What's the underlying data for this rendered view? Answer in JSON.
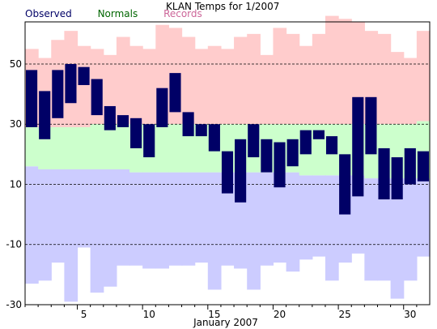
{
  "chart_data": {
    "type": "bar",
    "title": "KLAN Temps for 1/2007",
    "xlabel": "January 2007",
    "ylabel": "",
    "legend": [
      {
        "name": "Observed",
        "color": "#000066"
      },
      {
        "name": "Normals",
        "color": "#006600"
      },
      {
        "name": "Records",
        "color": "#cc6699"
      }
    ],
    "ylim": [
      -30,
      64
    ],
    "yticks": [
      -30,
      -10,
      10,
      30,
      50
    ],
    "xticks": [
      5,
      10,
      15,
      20,
      25,
      30
    ],
    "grid_y": [
      -10,
      10,
      30,
      50
    ],
    "colors": {
      "observed": "#000066",
      "normals": "#ccffcc",
      "records": "#ffcccc",
      "records_low": "#ccccff",
      "grid": "#000000"
    },
    "days": [
      1,
      2,
      3,
      4,
      5,
      6,
      7,
      8,
      9,
      10,
      11,
      12,
      13,
      14,
      15,
      16,
      17,
      18,
      19,
      20,
      21,
      22,
      23,
      24,
      25,
      26,
      27,
      28,
      29,
      30,
      31
    ],
    "observed": [
      {
        "day": 1,
        "high": 48,
        "low": 29
      },
      {
        "day": 2,
        "high": 41,
        "low": 25
      },
      {
        "day": 3,
        "high": 48,
        "low": 32
      },
      {
        "day": 4,
        "high": 50,
        "low": 37
      },
      {
        "day": 5,
        "high": 49,
        "low": 43
      },
      {
        "day": 6,
        "high": 45,
        "low": 33
      },
      {
        "day": 7,
        "high": 36,
        "low": 28
      },
      {
        "day": 8,
        "high": 33,
        "low": 29
      },
      {
        "day": 9,
        "high": 32,
        "low": 22
      },
      {
        "day": 10,
        "high": 30,
        "low": 19
      },
      {
        "day": 11,
        "high": 42,
        "low": 29
      },
      {
        "day": 12,
        "high": 47,
        "low": 34
      },
      {
        "day": 13,
        "high": 34,
        "low": 26
      },
      {
        "day": 14,
        "high": 30,
        "low": 26
      },
      {
        "day": 15,
        "high": 30,
        "low": 21
      },
      {
        "day": 16,
        "high": 21,
        "low": 7
      },
      {
        "day": 17,
        "high": 25,
        "low": 4
      },
      {
        "day": 18,
        "high": 30,
        "low": 19
      },
      {
        "day": 19,
        "high": 25,
        "low": 14
      },
      {
        "day": 20,
        "high": 24,
        "low": 9
      },
      {
        "day": 21,
        "high": 25,
        "low": 16
      },
      {
        "day": 22,
        "high": 28,
        "low": 20
      },
      {
        "day": 23,
        "high": 28,
        "low": 25
      },
      {
        "day": 24,
        "high": 26,
        "low": 20
      },
      {
        "day": 25,
        "high": 20,
        "low": 0
      },
      {
        "day": 26,
        "high": 39,
        "low": 6
      },
      {
        "day": 27,
        "high": 39,
        "low": 20
      },
      {
        "day": 28,
        "high": 22,
        "low": 5
      },
      {
        "day": 29,
        "high": 19,
        "low": 5
      },
      {
        "day": 30,
        "high": 22,
        "low": 10
      },
      {
        "day": 31,
        "high": 21,
        "low": 11
      }
    ],
    "normals": {
      "high": [
        29,
        29,
        29,
        29,
        29,
        30,
        30,
        30,
        30,
        30,
        30,
        30,
        30,
        30,
        30,
        30,
        30,
        30,
        30,
        30,
        30,
        30,
        30,
        30,
        30,
        30,
        30,
        30,
        30,
        30,
        31
      ],
      "low": [
        16,
        15,
        15,
        15,
        15,
        15,
        15,
        15,
        14,
        14,
        14,
        14,
        14,
        14,
        14,
        14,
        14,
        14,
        14,
        14,
        14,
        13,
        13,
        13,
        13,
        13,
        12,
        12,
        12,
        12,
        12
      ]
    },
    "records": {
      "high": [
        55,
        52,
        58,
        61,
        56,
        55,
        53,
        59,
        56,
        55,
        63,
        62,
        59,
        55,
        56,
        55,
        59,
        60,
        53,
        62,
        60,
        56,
        60,
        66,
        65,
        64,
        61,
        60,
        54,
        52,
        61
      ],
      "low": [
        -23,
        -22,
        -16,
        -29,
        -11,
        -26,
        -24,
        -17,
        -17,
        -18,
        -18,
        -17,
        -17,
        -16,
        -25,
        -17,
        -18,
        -25,
        -17,
        -16,
        -19,
        -15,
        -14,
        -22,
        -16,
        -13,
        -22,
        -22,
        -28,
        -22,
        -14
      ]
    }
  }
}
